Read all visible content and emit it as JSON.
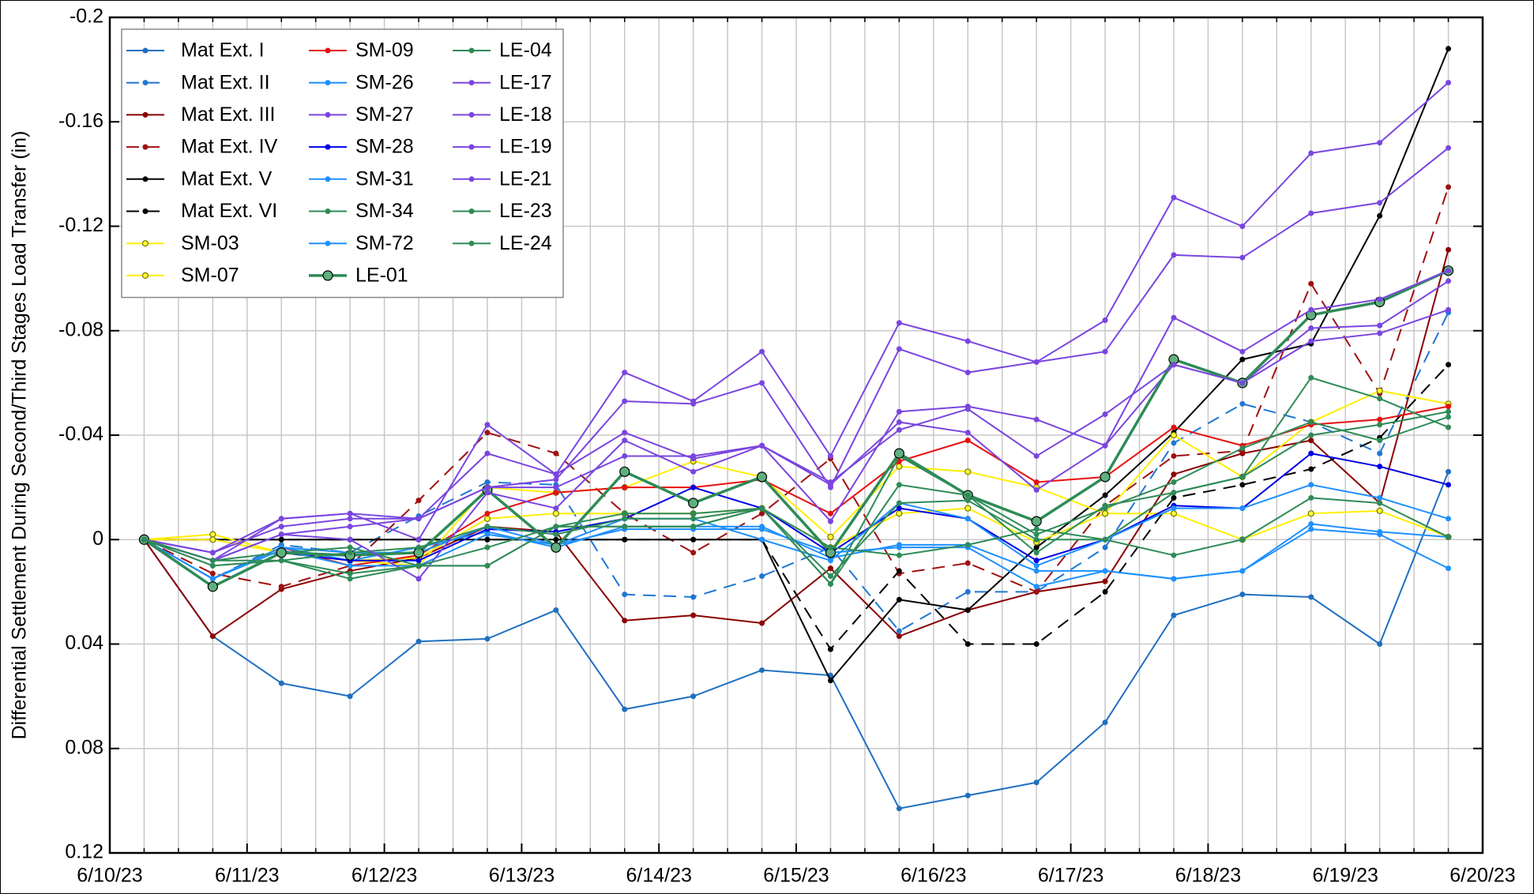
{
  "chart_data": {
    "type": "line",
    "ylabel": "Differential Settlement During Second/Third Stages Load Transfer (in)",
    "x": [
      0.25,
      0.75,
      1.25,
      1.75,
      2.25,
      2.75,
      3.25,
      3.75,
      4.25,
      4.75,
      5.25,
      5.75,
      6.25,
      6.75,
      7.25,
      7.75,
      8.25,
      8.75,
      9.25,
      9.75
    ],
    "xlim": [
      0,
      10
    ],
    "xticks": [
      {
        "value": 0,
        "label": "6/10/23"
      },
      {
        "value": 1,
        "label": "6/11/23"
      },
      {
        "value": 2,
        "label": "6/12/23"
      },
      {
        "value": 3,
        "label": "6/13/23"
      },
      {
        "value": 4,
        "label": "6/14/23"
      },
      {
        "value": 5,
        "label": "6/15/23"
      },
      {
        "value": 6,
        "label": "6/16/23"
      },
      {
        "value": 7,
        "label": "6/17/23"
      },
      {
        "value": 8,
        "label": "6/18/23"
      },
      {
        "value": 9,
        "label": "6/19/23"
      },
      {
        "value": 10,
        "label": "6/20/23"
      }
    ],
    "x_minor_per_tick": 4,
    "ylim": [
      -0.2,
      0.12
    ],
    "y_inverted": true,
    "yticks": [
      -0.2,
      -0.16,
      -0.12,
      -0.08,
      -0.04,
      0,
      0.04,
      0.08,
      0.12
    ],
    "grid": true,
    "legend": "upper left",
    "legend_columns": 3,
    "series": [
      {
        "name": "Mat Ext. I",
        "color": "#1f6fc0",
        "values": [
          0,
          0.037,
          0.055,
          0.06,
          0.039,
          0.038,
          0.027,
          0.065,
          0.06,
          0.05,
          0.052,
          0.103,
          0.098,
          0.093,
          0.07,
          0.029,
          0.021,
          0.022,
          0.04,
          -0.026
        ]
      },
      {
        "name": "Mat Ext. II",
        "color": "#1f77d4",
        "dashed": true,
        "values": [
          0,
          0.015,
          0.002,
          0.005,
          -0.009,
          -0.022,
          -0.021,
          0.021,
          0.022,
          0.014,
          0.003,
          0.035,
          0.02,
          0.02,
          0.003,
          -0.037,
          -0.052,
          -0.045,
          -0.033,
          -0.087
        ]
      },
      {
        "name": "Mat Ext. III",
        "color": "#8b0000",
        "values": [
          0,
          0.037,
          0.019,
          0.012,
          0.007,
          -0.005,
          -0.003,
          0.031,
          0.029,
          0.032,
          0.011,
          0.037,
          0.027,
          0.02,
          0.016,
          -0.025,
          -0.033,
          -0.038,
          -0.014,
          -0.111
        ]
      },
      {
        "name": "Mat Ext. IV",
        "color": "#a01010",
        "dashed": true,
        "values": [
          0,
          0.013,
          0.018,
          0.01,
          -0.015,
          -0.041,
          -0.033,
          -0.01,
          0.005,
          -0.01,
          -0.031,
          0.013,
          0.009,
          0.02,
          -0.013,
          -0.032,
          -0.034,
          -0.098,
          -0.056,
          -0.135
        ]
      },
      {
        "name": "Mat Ext. V",
        "color": "#000000",
        "values": [
          0,
          0,
          0,
          0,
          0,
          0,
          0,
          0,
          0,
          0,
          0.054,
          0.023,
          0.027,
          0.003,
          -0.017,
          -0.041,
          -0.069,
          -0.075,
          -0.124,
          -0.188
        ]
      },
      {
        "name": "Mat Ext. VI",
        "color": "#000000",
        "dashed": true,
        "values": [
          0,
          0,
          0,
          0,
          0,
          0,
          0,
          0,
          0,
          0,
          0.042,
          0.012,
          0.04,
          0.04,
          0.02,
          -0.016,
          -0.021,
          -0.027,
          -0.039,
          -0.067
        ]
      },
      {
        "name": "SM-03",
        "color": "#ffee00",
        "marker_fill": "#ffff33",
        "marker_stroke": "#777700",
        "values": [
          0,
          -0.002,
          0.005,
          0.008,
          0.007,
          -0.008,
          -0.01,
          -0.01,
          -0.01,
          -0.012,
          0.003,
          -0.01,
          -0.012,
          0.001,
          -0.01,
          -0.01,
          0,
          -0.01,
          -0.011,
          -0.001
        ]
      },
      {
        "name": "SM-07",
        "color": "#ffee00",
        "marker_fill": "#ffff33",
        "marker_stroke": "#777700",
        "values": [
          0,
          0,
          0.005,
          0.008,
          0.01,
          -0.02,
          -0.018,
          -0.02,
          -0.03,
          -0.024,
          -0.001,
          -0.028,
          -0.026,
          -0.02,
          -0.01,
          -0.04,
          -0.024,
          -0.045,
          -0.057,
          -0.052
        ]
      },
      {
        "name": "SM-09",
        "color": "#e81010",
        "values": [
          0,
          0.015,
          0.003,
          0.01,
          0.006,
          -0.01,
          -0.018,
          -0.02,
          -0.02,
          -0.023,
          -0.01,
          -0.03,
          -0.038,
          -0.022,
          -0.024,
          -0.043,
          -0.036,
          -0.044,
          -0.046,
          -0.051
        ]
      },
      {
        "name": "SM-26",
        "color": "#1e90ff",
        "values": [
          0,
          0.015,
          0.003,
          0.008,
          0.003,
          -0.003,
          0.003,
          -0.005,
          -0.005,
          -0.005,
          0.007,
          0.002,
          0.002,
          0.012,
          0.012,
          0.015,
          0.012,
          -0.004,
          -0.002,
          0.011
        ]
      },
      {
        "name": "SM-27",
        "color": "#7a45e0",
        "values": [
          0,
          0.008,
          -0.008,
          -0.01,
          -0.008,
          -0.033,
          -0.025,
          -0.041,
          -0.031,
          -0.036,
          -0.021,
          -0.045,
          -0.041,
          -0.019,
          -0.036,
          -0.067,
          -0.06,
          -0.081,
          -0.082,
          -0.099
        ]
      },
      {
        "name": "SM-28",
        "color": "#0000e6",
        "values": [
          0,
          0.018,
          0.005,
          0.008,
          0.008,
          -0.004,
          -0.003,
          -0.008,
          -0.02,
          -0.012,
          0.005,
          -0.012,
          -0.008,
          0.008,
          0,
          -0.013,
          -0.012,
          -0.033,
          -0.028,
          -0.021
        ]
      },
      {
        "name": "SM-31",
        "color": "#1e90ff",
        "values": [
          0,
          0.015,
          0.003,
          0.005,
          0.005,
          -0.005,
          0.002,
          -0.008,
          -0.008,
          0,
          0.008,
          -0.014,
          -0.008,
          0.01,
          0,
          -0.012,
          -0.012,
          -0.021,
          -0.016,
          -0.008
        ]
      },
      {
        "name": "SM-34",
        "color": "#2e8b57",
        "values": [
          0,
          0.008,
          0.005,
          0.003,
          0.01,
          0.01,
          -0.005,
          -0.005,
          -0.005,
          -0.012,
          0.017,
          -0.032,
          -0.017,
          0.005,
          -0.013,
          -0.018,
          -0.024,
          -0.062,
          -0.054,
          -0.043
        ]
      },
      {
        "name": "SM-72",
        "color": "#1e90ff",
        "values": [
          0,
          0.015,
          0.004,
          0.01,
          0.01,
          -0.002,
          0.002,
          -0.004,
          -0.004,
          -0.004,
          0.005,
          0.003,
          0.003,
          0.018,
          0.012,
          0.015,
          0.012,
          -0.006,
          -0.003,
          -0.001
        ]
      },
      {
        "name": "LE-01",
        "color": "#2e8b57",
        "line_width": 3.5,
        "marker_size": 6,
        "marker_fill": "#5fb07e",
        "marker_stroke": "#000000",
        "values": [
          0,
          0.018,
          0.005,
          0.006,
          0.005,
          -0.019,
          0.003,
          -0.026,
          -0.014,
          -0.024,
          0.005,
          -0.033,
          -0.017,
          -0.007,
          -0.024,
          -0.069,
          -0.06,
          -0.086,
          -0.091,
          -0.103
        ]
      },
      {
        "name": "LE-04",
        "color": "#2e8b57",
        "values": [
          0,
          0.01,
          0.008,
          0.005,
          0.003,
          -0.005,
          -0.002,
          -0.008,
          -0.008,
          -0.012,
          0.017,
          -0.021,
          -0.017,
          -0.002,
          -0.012,
          -0.022,
          -0.035,
          -0.045,
          -0.038,
          -0.047
        ]
      },
      {
        "name": "LE-17",
        "color": "#7a45e0",
        "values": [
          0,
          0.005,
          -0.008,
          -0.01,
          0,
          -0.044,
          -0.025,
          -0.064,
          -0.053,
          -0.072,
          -0.032,
          -0.083,
          -0.076,
          -0.068,
          -0.084,
          -0.131,
          -0.12,
          -0.148,
          -0.152,
          -0.175
        ]
      },
      {
        "name": "LE-18",
        "color": "#7a45e0",
        "values": [
          0,
          0.005,
          -0.005,
          -0.008,
          -0.008,
          -0.02,
          -0.023,
          -0.053,
          -0.052,
          -0.06,
          -0.02,
          -0.073,
          -0.064,
          -0.068,
          -0.072,
          -0.109,
          -0.108,
          -0.125,
          -0.129,
          -0.15
        ]
      },
      {
        "name": "LE-19",
        "color": "#7a45e0",
        "values": [
          0,
          0.008,
          -0.002,
          0,
          0.015,
          -0.018,
          -0.012,
          -0.038,
          -0.026,
          -0.036,
          -0.007,
          -0.049,
          -0.051,
          -0.046,
          -0.036,
          -0.085,
          -0.072,
          -0.088,
          -0.092,
          -0.103
        ]
      },
      {
        "name": "LE-21",
        "color": "#7a45e0",
        "values": [
          0,
          0.008,
          -0.002,
          -0.005,
          -0.008,
          -0.02,
          -0.02,
          -0.032,
          -0.032,
          -0.036,
          -0.022,
          -0.042,
          -0.05,
          -0.032,
          -0.048,
          -0.067,
          -0.06,
          -0.076,
          -0.079,
          -0.088
        ]
      },
      {
        "name": "LE-23",
        "color": "#2e8b57",
        "values": [
          0,
          0.008,
          0.008,
          0.015,
          0.01,
          0.01,
          -0.005,
          -0.005,
          -0.005,
          -0.012,
          0.014,
          -0.014,
          -0.015,
          0,
          0,
          0.006,
          0,
          -0.016,
          -0.014,
          -0.001
        ]
      },
      {
        "name": "LE-24",
        "color": "#2e8b57",
        "values": [
          0,
          0.01,
          0.008,
          0.013,
          0.01,
          0.003,
          -0.005,
          -0.01,
          -0.01,
          -0.012,
          0.003,
          0.006,
          0.002,
          -0.004,
          0,
          -0.018,
          -0.024,
          -0.04,
          -0.044,
          -0.049
        ]
      }
    ]
  }
}
